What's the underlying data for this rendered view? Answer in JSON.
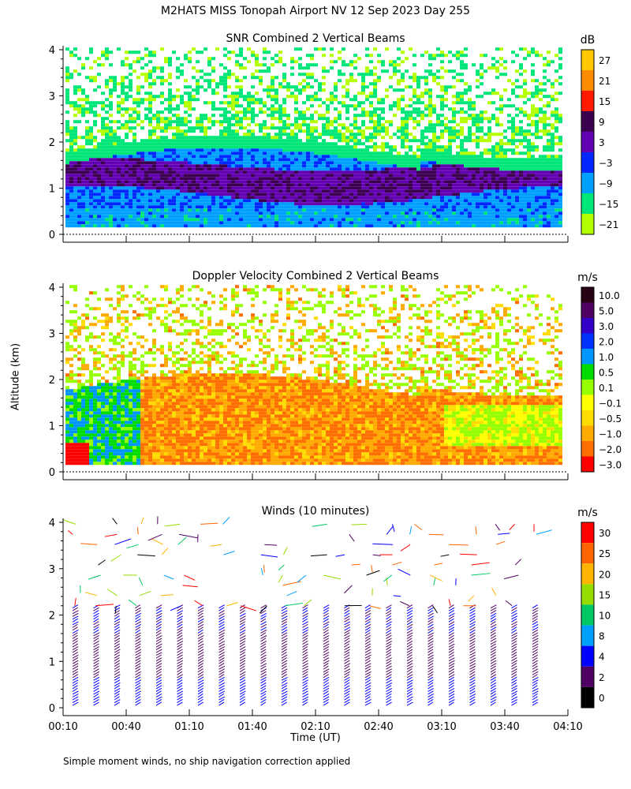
{
  "title": "M2HATS MISS Tonopah Airport NV  12 Sep 2023 Day 255",
  "y_axis_label": "Altitude (km)",
  "x_axis_label": "Time (UT)",
  "footnote": "Simple moment winds, no ship navigation correction applied",
  "chart_data": [
    {
      "type": "heatmap",
      "title": "SNR Combined 2 Vertical Beams",
      "ylabel": "Altitude (km)",
      "ylim": [
        0,
        4
      ],
      "yticks": [
        "0",
        "1",
        "2",
        "3",
        "4"
      ],
      "colorbar_unit": "dB",
      "colorbar_labels": [
        "27",
        "21",
        "15",
        "9",
        "3",
        "−3",
        "−9",
        "−15",
        "−21"
      ],
      "colorbar_colors": [
        "#ffc800",
        "#ff8c00",
        "#ff1a00",
        "#3c0050",
        "#6400b4",
        "#0028ff",
        "#00a0ff",
        "#00e678",
        "#b4ff00"
      ],
      "x_range": [
        "00:10",
        "04:10"
      ],
      "y_data_range_km": [
        0.15,
        4.0
      ]
    },
    {
      "type": "heatmap",
      "title": "Doppler Velocity Combined 2 Vertical Beams",
      "ylabel": "Altitude (km)",
      "ylim": [
        0,
        4
      ],
      "yticks": [
        "0",
        "1",
        "2",
        "3",
        "4"
      ],
      "colorbar_unit": "m/s",
      "colorbar_labels": [
        "10.0",
        "5.0",
        "3.0",
        "2.0",
        "1.0",
        "0.5",
        "0.1",
        "−0.1",
        "−0.5",
        "−1.0",
        "−2.0",
        "−3.0"
      ],
      "colorbar_colors": [
        "#280014",
        "#500064",
        "#3200c8",
        "#0032ff",
        "#0096ff",
        "#00dc00",
        "#96ff00",
        "#ffff00",
        "#ffdc00",
        "#ffaa00",
        "#ff6e00",
        "#ff0000"
      ],
      "x_range": [
        "00:10",
        "04:10"
      ],
      "y_data_range_km": [
        0.15,
        4.0
      ]
    },
    {
      "type": "scatter",
      "title": "Winds (10 minutes)",
      "xlabel": "Time (UT)",
      "ylabel": "Altitude (km)",
      "ylim": [
        0,
        4
      ],
      "yticks": [
        "0",
        "1",
        "2",
        "3",
        "4"
      ],
      "xticks": [
        "00:10",
        "00:40",
        "01:10",
        "01:40",
        "02:10",
        "02:40",
        "03:10",
        "03:40",
        "04:10"
      ],
      "colorbar_unit": "m/s",
      "colorbar_labels": [
        "30",
        "25",
        "20",
        "15",
        "10",
        "8",
        "4",
        "2",
        "0"
      ],
      "colorbar_colors": [
        "#ff0000",
        "#ff6400",
        "#ffb400",
        "#96dc00",
        "#00c864",
        "#00a0ff",
        "#0000ff",
        "#500064",
        "#000000"
      ],
      "profile_times": [
        "00:20",
        "00:30",
        "00:40",
        "00:50",
        "01:00",
        "01:10",
        "01:20",
        "01:30",
        "01:40",
        "01:50",
        "02:00",
        "02:10",
        "02:20",
        "02:30",
        "02:40",
        "02:50",
        "03:00",
        "03:10",
        "03:20",
        "03:30",
        "03:40",
        "03:50",
        "04:00"
      ]
    }
  ]
}
